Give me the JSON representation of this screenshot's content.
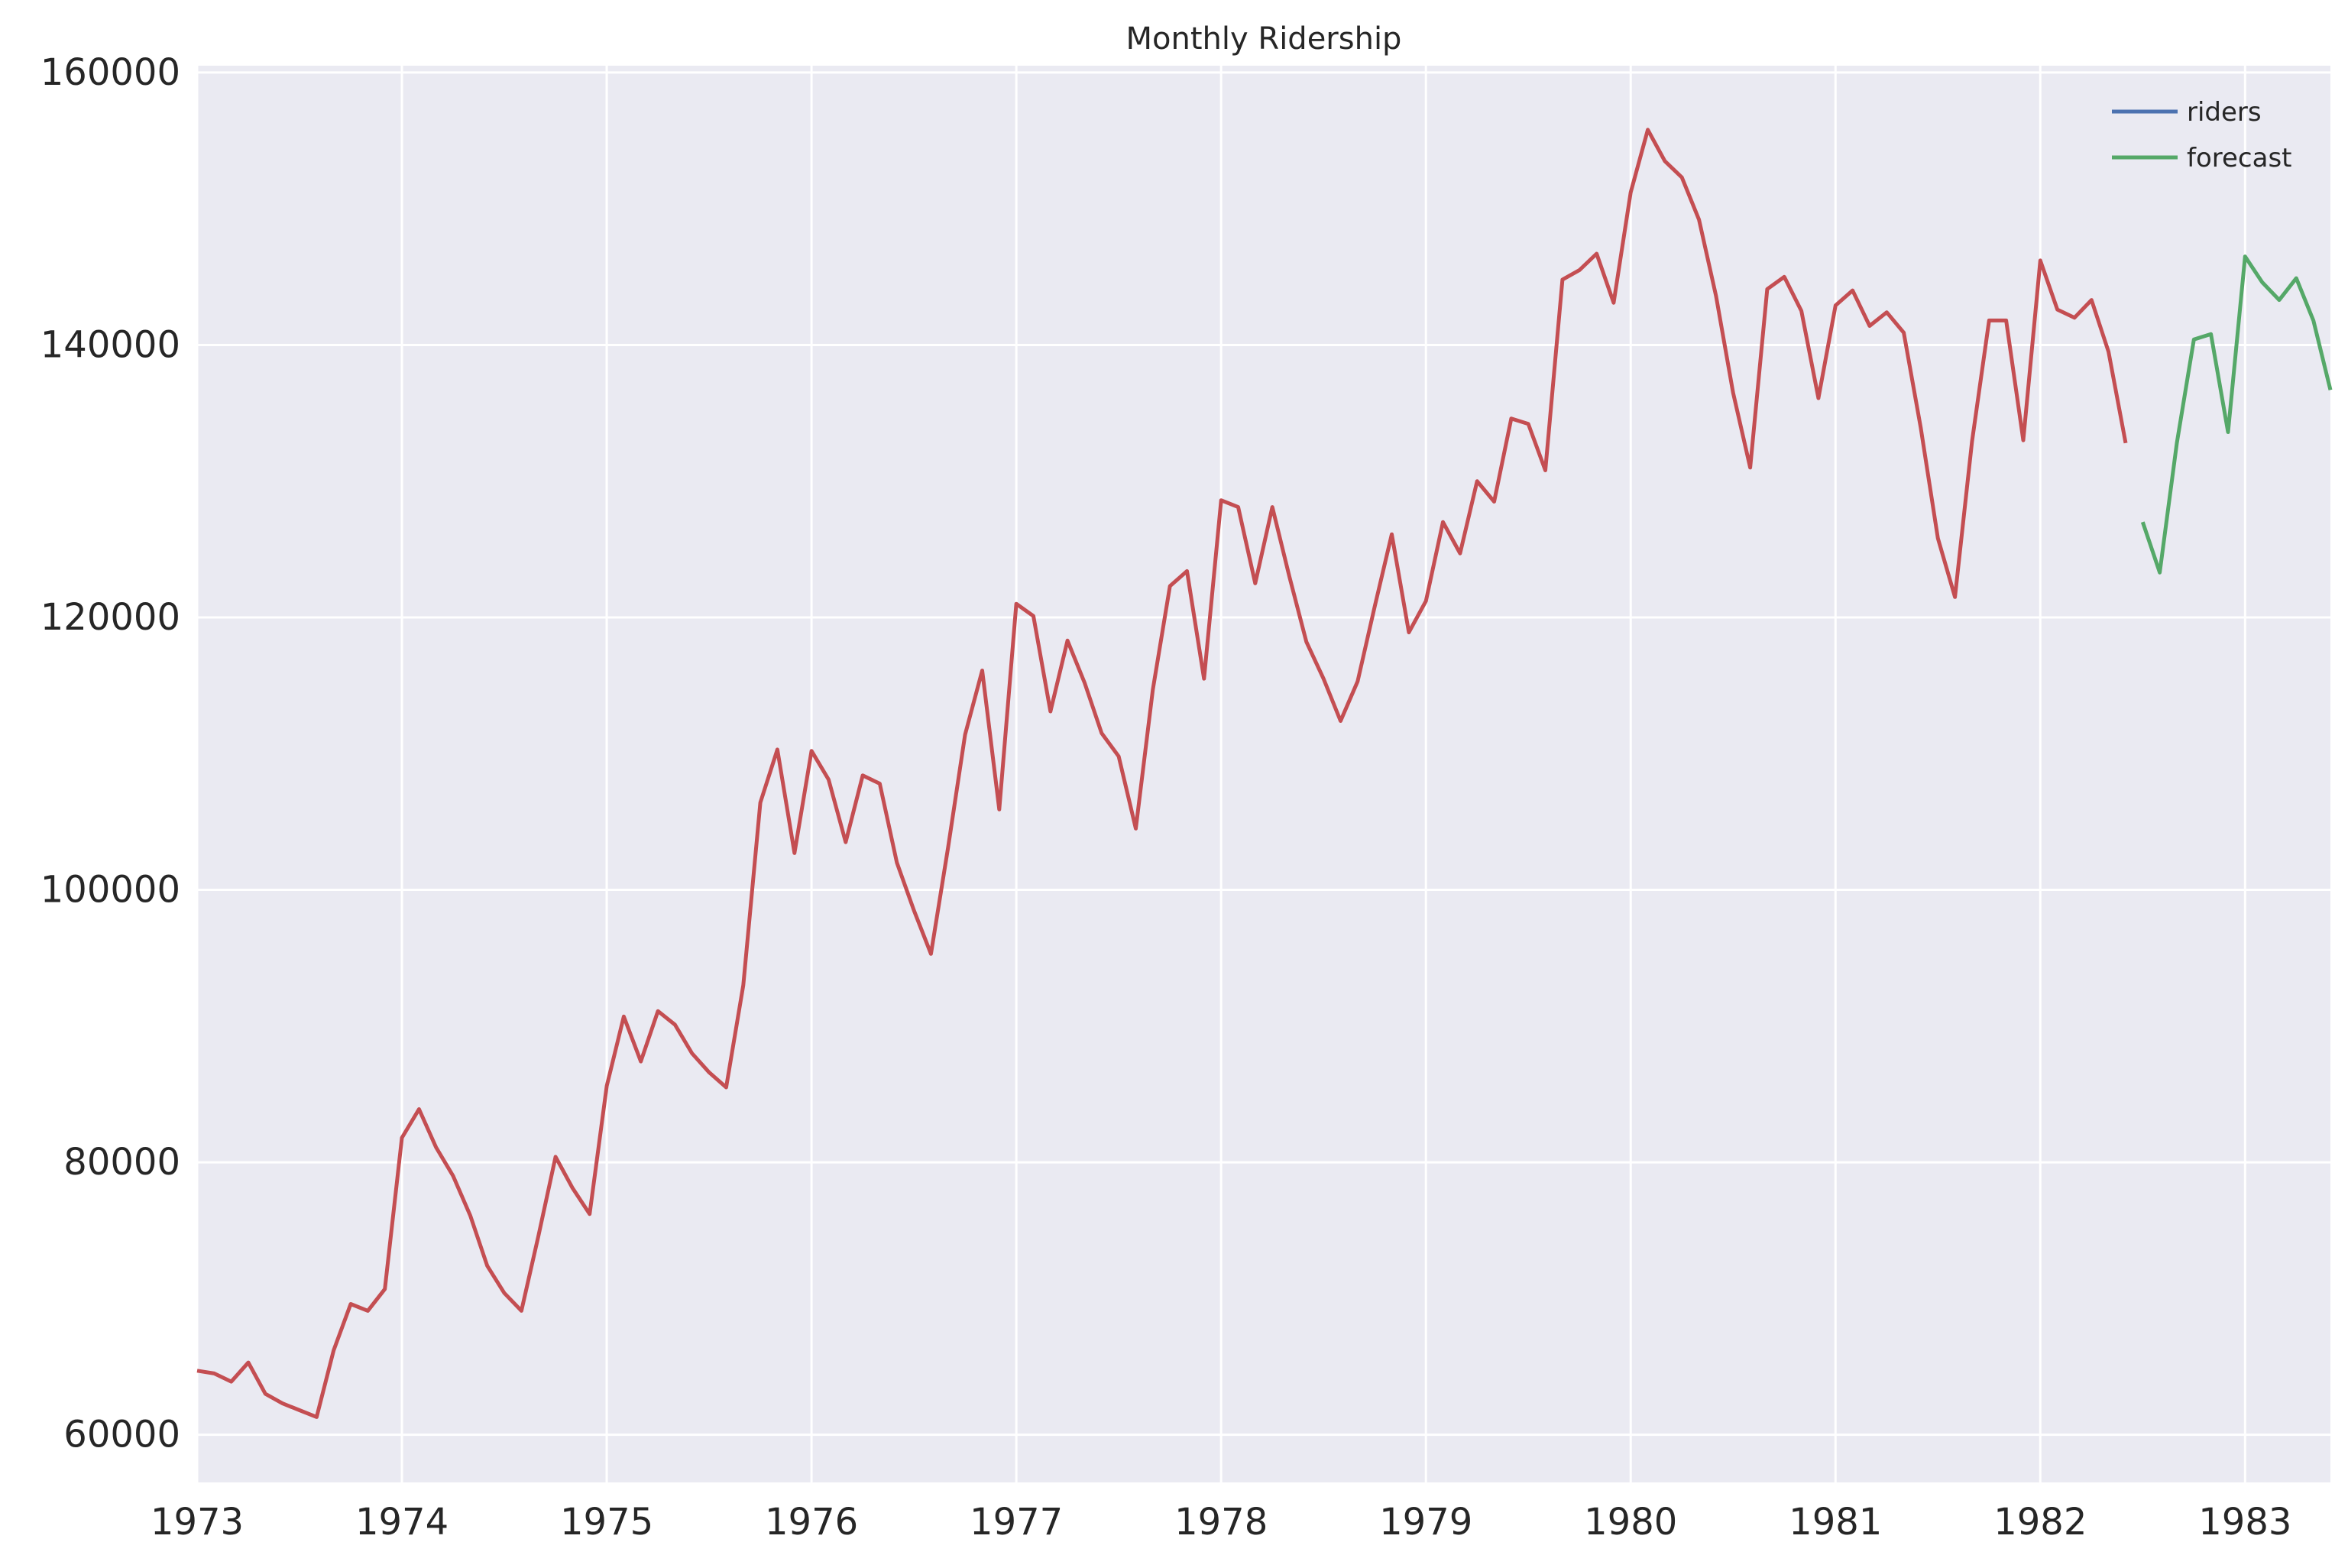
{
  "chart_data": {
    "type": "line",
    "title": "Monthly Ridership",
    "xlabel": "",
    "ylabel": "",
    "x_ticks": [
      "1973",
      "1974",
      "1975",
      "1976",
      "1977",
      "1978",
      "1979",
      "1980",
      "1981",
      "1982",
      "1983"
    ],
    "y_ticks": [
      "60000",
      "80000",
      "100000",
      "120000",
      "140000",
      "160000"
    ],
    "xlim": [
      "1973-01",
      "1983-06"
    ],
    "ylim": [
      56500,
      160500
    ],
    "grid": true,
    "legend_position": "top-right",
    "series": [
      {
        "name": "riders",
        "color": "#4c72b0",
        "x_start": "1973-01",
        "values": [
          64700,
          64500,
          63900,
          65300,
          63000,
          62300,
          61800,
          61300,
          66200,
          69600,
          69100,
          70700,
          81800,
          83900,
          81100,
          79000,
          76100,
          72400,
          70400,
          69100,
          74600,
          80400,
          78100,
          76200,
          85600,
          90700,
          87400,
          91100,
          90100,
          88000,
          86600,
          85500,
          93000,
          106400,
          110300,
          102700,
          110200,
          108100,
          103500,
          108400,
          107800,
          102000,
          98500,
          95300,
          103100,
          111400,
          116100,
          105900,
          121000,
          120100,
          113100,
          118300,
          115200,
          111500,
          109800,
          104500,
          114700,
          122300,
          123400,
          115500,
          128600,
          128100,
          122500,
          128100,
          123000,
          118200,
          115500,
          112400,
          115300,
          120800,
          126100,
          118900,
          121200,
          127000,
          124700,
          130000,
          128500,
          134600,
          134200,
          130800,
          144800,
          145500,
          146700,
          143100,
          151200,
          155800,
          153500,
          152300,
          149200,
          143600,
          136500,
          131000,
          144100,
          145000,
          142500,
          136100,
          142900,
          144000,
          141400,
          142400,
          140900,
          133900,
          125800,
          121500,
          132900,
          141800,
          141800,
          133000,
          146200,
          142600,
          142000,
          143300,
          139500,
          132800
        ]
      },
      {
        "name": "forecast",
        "color": "#55a868",
        "x_start": "1982-07",
        "values": [
          127000,
          123300,
          132800,
          140400,
          140800,
          133600,
          146500,
          144600,
          143300,
          144900,
          141800,
          136700
        ]
      }
    ],
    "observed_line_color": "#c44e52"
  }
}
